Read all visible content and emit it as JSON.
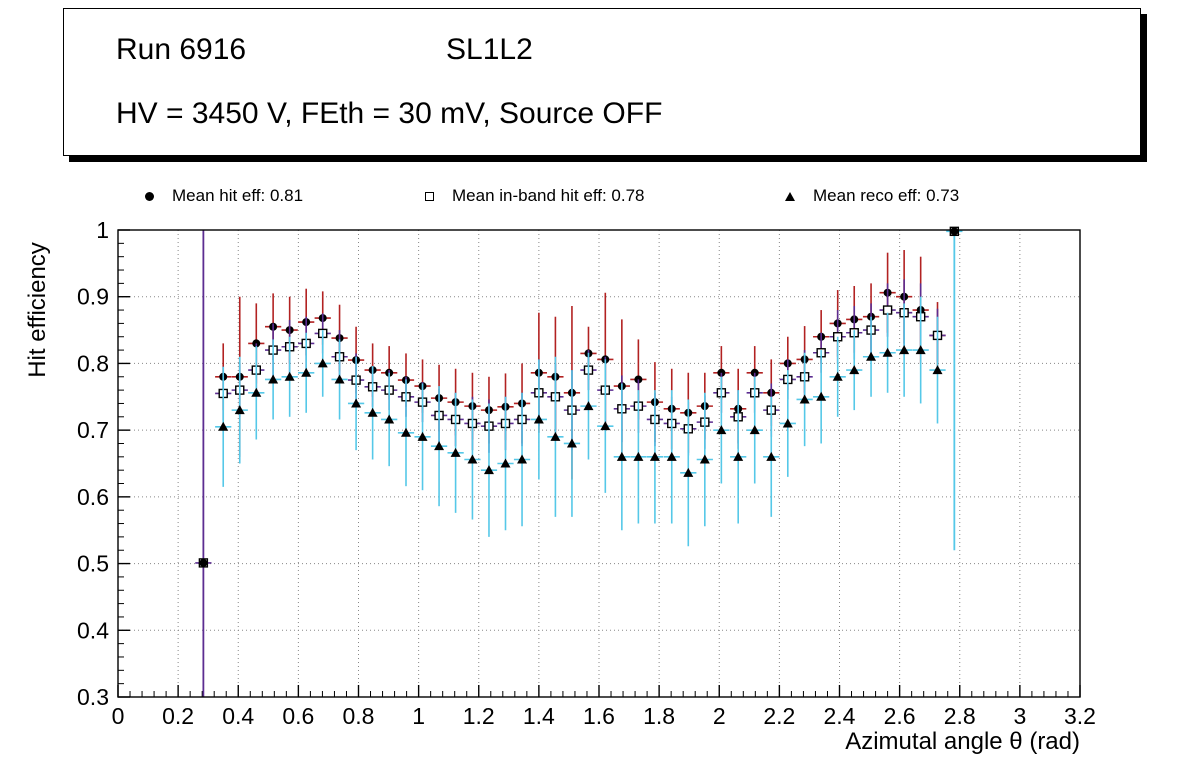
{
  "title_box": {
    "run": "Run 6916",
    "layer": "SL1L2",
    "conditions": "HV = 3450 V, FEth = 30 mV, Source OFF"
  },
  "legend": {
    "items": [
      {
        "marker": "filled-circle",
        "label": "Mean hit  eff: 0.81"
      },
      {
        "marker": "open-square",
        "label": "Mean in-band hit eff: 0.78"
      },
      {
        "marker": "filled-triangle",
        "label": "Mean reco eff: 0.73"
      }
    ]
  },
  "colors": {
    "hit_error": "#b22222",
    "inband_error": "#5c2d91",
    "reco_error": "#55c8e8",
    "marker": "#000000",
    "grid": "#888888",
    "frame": "#000000"
  },
  "chart_data": {
    "type": "scatter",
    "title": "",
    "xlabel": "Azimutal angle θ (rad)",
    "ylabel": "Hit efficiency",
    "xlim": [
      0,
      3.2
    ],
    "ylim": [
      0.3,
      1.0
    ],
    "xticks": [
      0,
      0.2,
      0.4,
      0.6,
      0.8,
      1,
      1.2,
      1.4,
      1.6,
      1.8,
      2,
      2.2,
      2.4,
      2.6,
      2.8,
      3,
      3.2
    ],
    "yticks": [
      0.3,
      0.4,
      0.5,
      0.6,
      0.7,
      0.8,
      0.9,
      1
    ],
    "grid": "dotted",
    "legend_position": "top",
    "x": [
      0.35,
      0.405,
      0.46,
      0.516,
      0.571,
      0.626,
      0.681,
      0.737,
      0.792,
      0.847,
      0.902,
      0.958,
      1.013,
      1.068,
      1.123,
      1.179,
      1.234,
      1.289,
      1.344,
      1.4,
      1.455,
      1.51,
      1.565,
      1.621,
      1.676,
      1.731,
      1.786,
      1.842,
      1.897,
      1.952,
      2.007,
      2.063,
      2.118,
      2.173,
      2.228,
      2.284,
      2.339,
      2.394,
      2.449,
      2.505,
      2.56,
      2.615,
      2.67,
      2.726
    ],
    "xerr": 0.027,
    "series": [
      {
        "name": "Mean hit eff",
        "mean": 0.81,
        "marker": "circle",
        "error_color": "#b22222",
        "y": [
          0.78,
          0.78,
          0.83,
          0.855,
          0.85,
          0.862,
          0.868,
          0.838,
          0.805,
          0.79,
          0.786,
          0.775,
          0.766,
          0.748,
          0.742,
          0.736,
          0.73,
          0.735,
          0.74,
          0.786,
          0.78,
          0.756,
          0.815,
          0.806,
          0.766,
          0.776,
          0.742,
          0.732,
          0.726,
          0.736,
          0.786,
          0.732,
          0.786,
          0.756,
          0.8,
          0.806,
          0.84,
          0.86,
          0.866,
          0.87,
          0.906,
          0.9,
          0.88,
          0.842
        ],
        "yerr": [
          0.05,
          0.12,
          0.06,
          0.05,
          0.05,
          0.05,
          0.04,
          0.05,
          0.05,
          0.04,
          0.04,
          0.04,
          0.04,
          0.05,
          0.05,
          0.05,
          0.05,
          0.05,
          0.06,
          0.09,
          0.09,
          0.13,
          0.04,
          0.1,
          0.1,
          0.06,
          0.06,
          0.06,
          0.06,
          0.05,
          0.04,
          0.06,
          0.04,
          0.05,
          0.04,
          0.05,
          0.04,
          0.05,
          0.05,
          0.05,
          0.06,
          0.07,
          0.08,
          0.05
        ]
      },
      {
        "name": "Mean in-band hit eff",
        "mean": 0.78,
        "marker": "square-open",
        "error_color": "#5c2d91",
        "y": [
          0.755,
          0.76,
          0.79,
          0.82,
          0.825,
          0.83,
          0.845,
          0.81,
          0.775,
          0.765,
          0.76,
          0.75,
          0.742,
          0.722,
          0.716,
          0.71,
          0.706,
          0.71,
          0.716,
          0.756,
          0.75,
          0.73,
          0.79,
          0.76,
          0.732,
          0.736,
          0.716,
          0.71,
          0.702,
          0.712,
          0.756,
          0.72,
          0.756,
          0.73,
          0.776,
          0.78,
          0.816,
          0.84,
          0.846,
          0.85,
          0.88,
          0.876,
          0.87,
          0.842
        ],
        "yerr": [
          0.04,
          0.04,
          0.04,
          0.04,
          0.04,
          0.04,
          0.03,
          0.04,
          0.04,
          0.03,
          0.03,
          0.03,
          0.03,
          0.04,
          0.04,
          0.04,
          0.04,
          0.04,
          0.04,
          0.05,
          0.05,
          0.06,
          0.03,
          0.05,
          0.05,
          0.04,
          0.04,
          0.04,
          0.04,
          0.04,
          0.03,
          0.04,
          0.03,
          0.04,
          0.03,
          0.04,
          0.03,
          0.04,
          0.04,
          0.04,
          0.04,
          0.05,
          0.05,
          0.04
        ]
      },
      {
        "name": "Mean reco eff",
        "mean": 0.73,
        "marker": "triangle",
        "error_color": "#55c8e8",
        "y": [
          0.705,
          0.73,
          0.756,
          0.776,
          0.78,
          0.786,
          0.8,
          0.776,
          0.74,
          0.726,
          0.716,
          0.696,
          0.69,
          0.676,
          0.666,
          0.656,
          0.64,
          0.65,
          0.656,
          0.716,
          0.69,
          0.68,
          0.736,
          0.706,
          0.66,
          0.66,
          0.66,
          0.66,
          0.636,
          0.656,
          0.7,
          0.66,
          0.7,
          0.66,
          0.71,
          0.746,
          0.75,
          0.78,
          0.79,
          0.81,
          0.816,
          0.82,
          0.82,
          0.79
        ],
        "yerr": [
          0.09,
          0.08,
          0.07,
          0.06,
          0.06,
          0.06,
          0.05,
          0.06,
          0.07,
          0.07,
          0.07,
          0.08,
          0.08,
          0.09,
          0.09,
          0.09,
          0.1,
          0.1,
          0.1,
          0.09,
          0.12,
          0.11,
          0.08,
          0.1,
          0.11,
          0.1,
          0.1,
          0.1,
          0.11,
          0.1,
          0.08,
          0.1,
          0.08,
          0.09,
          0.08,
          0.07,
          0.07,
          0.06,
          0.06,
          0.06,
          0.06,
          0.07,
          0.08,
          0.08
        ]
      }
    ],
    "special_points": [
      {
        "x": 0.284,
        "y": 0.501,
        "bar_color": "#5c2d91",
        "bar_y1": 0.3,
        "bar_y2": 1.0,
        "markers": [
          "square-open",
          "circle"
        ]
      },
      {
        "x": 2.782,
        "y": 0.998,
        "bar_color": "#55c8e8",
        "bar_y1": 0.52,
        "bar_y2": 1.0,
        "markers": [
          "square-open",
          "circle"
        ]
      }
    ]
  }
}
